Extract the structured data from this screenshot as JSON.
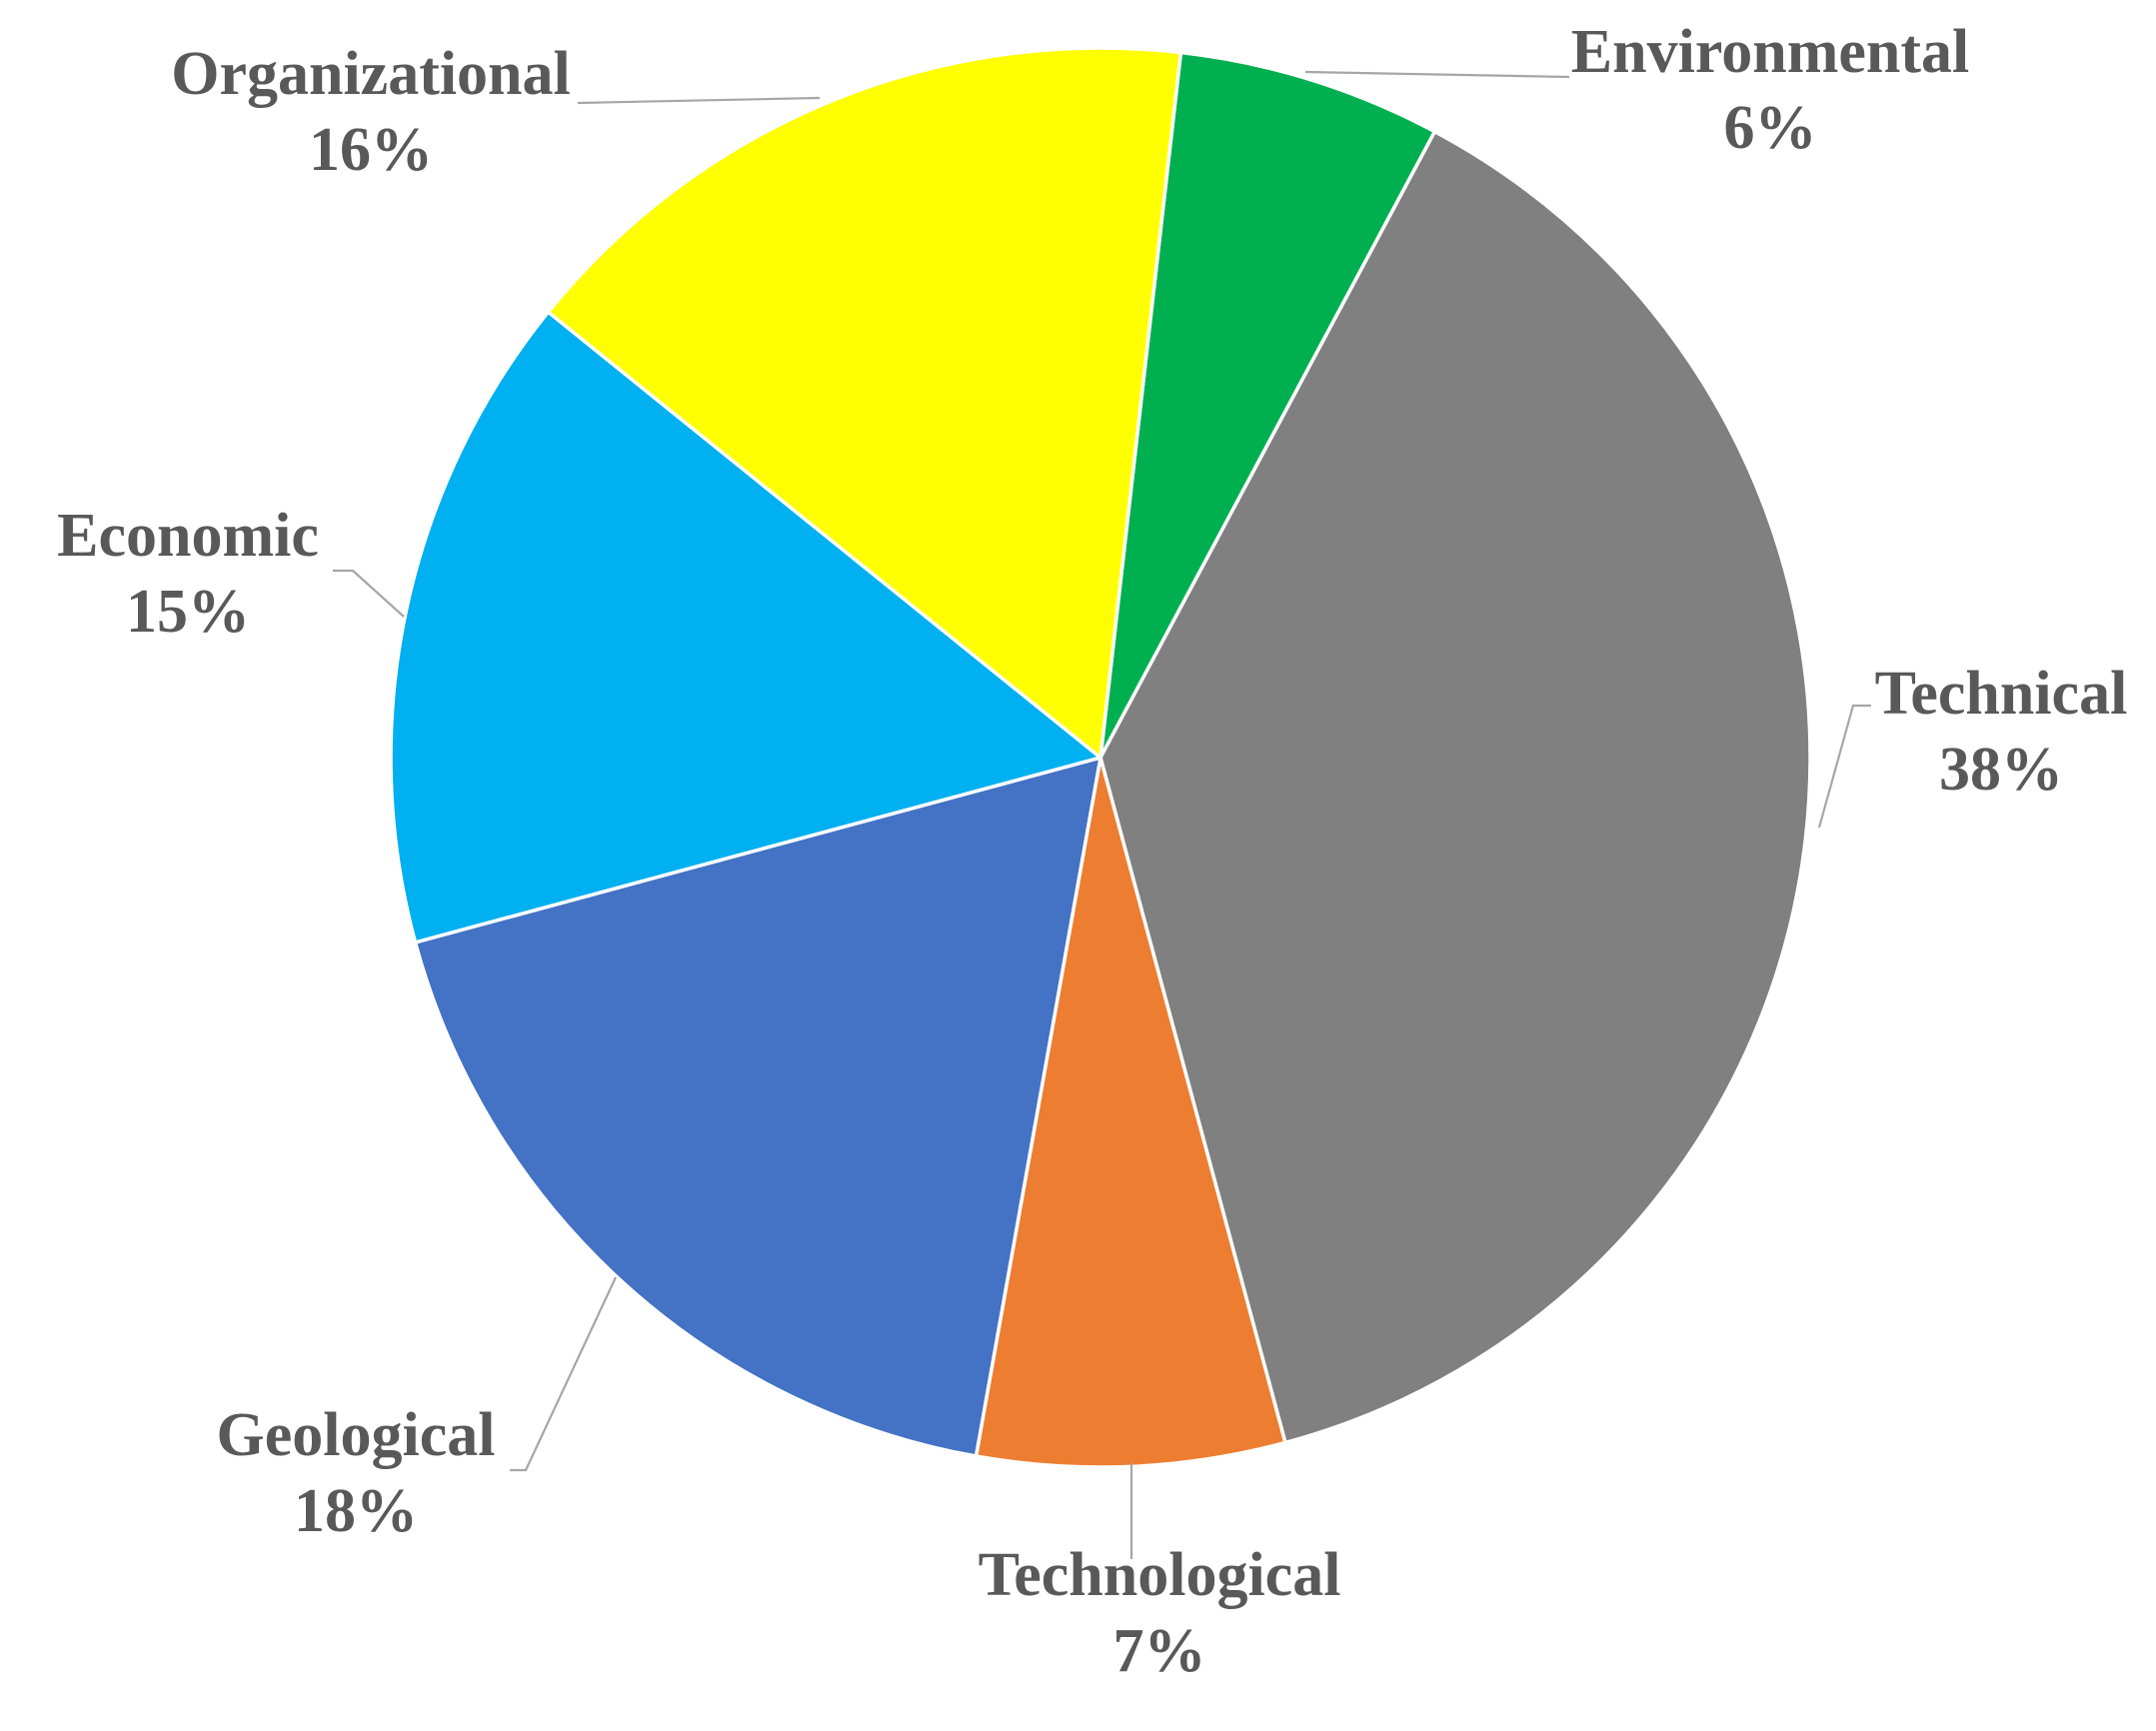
{
  "chart_data": {
    "type": "pie",
    "title": "",
    "slices": [
      {
        "label": "Environmental",
        "value": 6,
        "value_label": "6%",
        "color": "#00B050"
      },
      {
        "label": "Technical",
        "value": 38,
        "value_label": "38%",
        "color": "#808080"
      },
      {
        "label": "Technological",
        "value": 7,
        "value_label": "7%",
        "color": "#ED7D31"
      },
      {
        "label": "Geological",
        "value": 18,
        "value_label": "18%",
        "color": "#4472C4"
      },
      {
        "label": "Economic",
        "value": 15,
        "value_label": "15%",
        "color": "#00B0F0"
      },
      {
        "label": "Organizational",
        "value": 16,
        "value_label": "16%",
        "color": "#FFFF00"
      }
    ],
    "start_angle_deg": 6.5,
    "direction": "clockwise",
    "legend": "none",
    "data_labels": "outside-with-leader-lines",
    "slice_border_color": "#FFFFFF",
    "label_color": "#595959",
    "leader_color": "#A6A6A6"
  }
}
